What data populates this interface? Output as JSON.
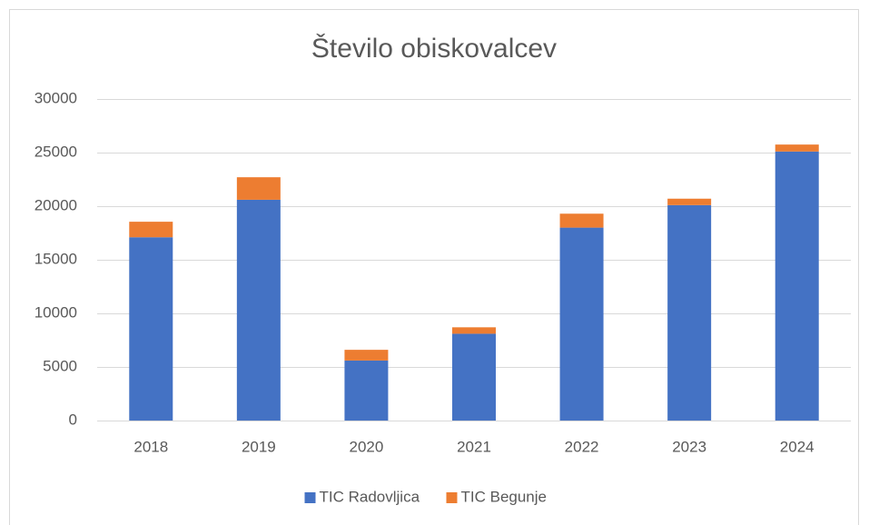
{
  "chart_data": {
    "type": "bar",
    "stacked": true,
    "title": "Število obiskovalcev",
    "categories": [
      "2018",
      "2019",
      "2020",
      "2021",
      "2022",
      "2023",
      "2024"
    ],
    "series": [
      {
        "name": "TIC Radovljica",
        "color": "#4472c4",
        "values": [
          17100,
          20600,
          5600,
          8100,
          18000,
          20100,
          25100
        ]
      },
      {
        "name": "TIC Begunje",
        "color": "#ed7d31",
        "values": [
          1450,
          2100,
          1000,
          600,
          1300,
          600,
          650
        ]
      }
    ],
    "ylim": [
      0,
      30000
    ],
    "yticks": [
      0,
      5000,
      10000,
      15000,
      20000,
      25000,
      30000
    ],
    "grid": true,
    "legend": "bottom"
  }
}
